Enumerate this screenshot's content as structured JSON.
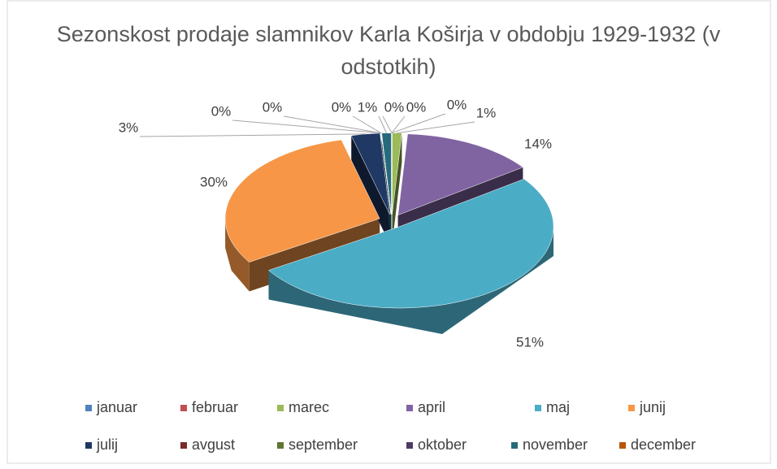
{
  "chart_data": {
    "type": "pie",
    "title": "Sezonskost prodaje slamnikov Karla Koširja v obdobju 1929-1932 (v odstotkih)",
    "categories": [
      "januar",
      "februar",
      "marec",
      "april",
      "maj",
      "junij",
      "julij",
      "avgust",
      "september",
      "oktober",
      "november",
      "december"
    ],
    "values": [
      0,
      0,
      1,
      14,
      51,
      30,
      3,
      0,
      0,
      0,
      1,
      0
    ],
    "value_labels": [
      "0%",
      "0%",
      "1%",
      "14%",
      "51%",
      "30%",
      "3%",
      "0%",
      "0%",
      "0%",
      "1%",
      "0%"
    ],
    "colors": [
      "#4f81bd",
      "#c0504d",
      "#9bbb59",
      "#8064a2",
      "#4bacc6",
      "#f79646",
      "#1f3864",
      "#772c2a",
      "#5f7530",
      "#4d3b62",
      "#276a7c",
      "#b65708"
    ],
    "legend": "bottom"
  }
}
